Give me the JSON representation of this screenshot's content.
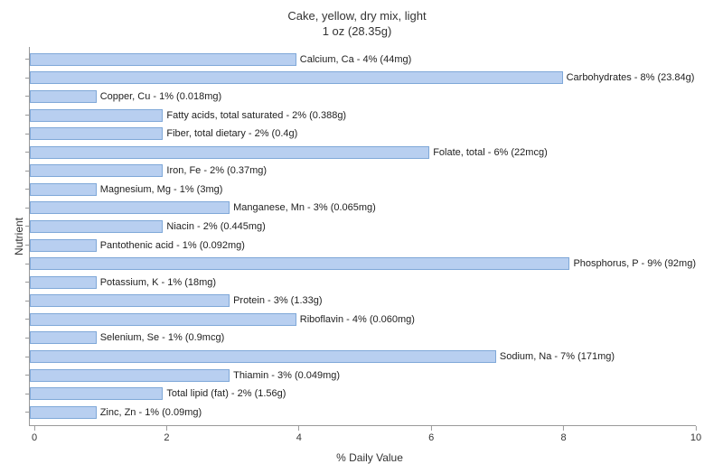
{
  "chart": {
    "type": "bar-horizontal",
    "title_line1": "Cake, yellow, dry mix, light",
    "title_line2": "1 oz (28.35g)",
    "title_fontsize": 13,
    "ylabel": "Nutrient",
    "xlabel": "% Daily Value",
    "label_fontsize": 12,
    "xlim": [
      0,
      10
    ],
    "xtick_step": 2,
    "xticks": [
      "0",
      "2",
      "4",
      "6",
      "8",
      "10"
    ],
    "bar_fill": "#b8cff0",
    "bar_border": "#7fa8d8",
    "background_color": "#ffffff",
    "axis_color": "#999999",
    "text_color": "#333333",
    "bar_label_fontsize": 11,
    "nutrients": [
      {
        "label": "Calcium, Ca - 4% (44mg)",
        "value": 4
      },
      {
        "label": "Carbohydrates - 8% (23.84g)",
        "value": 8
      },
      {
        "label": "Copper, Cu - 1% (0.018mg)",
        "value": 1
      },
      {
        "label": "Fatty acids, total saturated - 2% (0.388g)",
        "value": 2
      },
      {
        "label": "Fiber, total dietary - 2% (0.4g)",
        "value": 2
      },
      {
        "label": "Folate, total - 6% (22mcg)",
        "value": 6
      },
      {
        "label": "Iron, Fe - 2% (0.37mg)",
        "value": 2
      },
      {
        "label": "Magnesium, Mg - 1% (3mg)",
        "value": 1
      },
      {
        "label": "Manganese, Mn - 3% (0.065mg)",
        "value": 3
      },
      {
        "label": "Niacin - 2% (0.445mg)",
        "value": 2
      },
      {
        "label": "Pantothenic acid - 1% (0.092mg)",
        "value": 1
      },
      {
        "label": "Phosphorus, P - 9% (92mg)",
        "value": 9
      },
      {
        "label": "Potassium, K - 1% (18mg)",
        "value": 1
      },
      {
        "label": "Protein - 3% (1.33g)",
        "value": 3
      },
      {
        "label": "Riboflavin - 4% (0.060mg)",
        "value": 4
      },
      {
        "label": "Selenium, Se - 1% (0.9mcg)",
        "value": 1
      },
      {
        "label": "Sodium, Na - 7% (171mg)",
        "value": 7
      },
      {
        "label": "Thiamin - 3% (0.049mg)",
        "value": 3
      },
      {
        "label": "Total lipid (fat) - 2% (1.56g)",
        "value": 2
      },
      {
        "label": "Zinc, Zn - 1% (0.09mg)",
        "value": 1
      }
    ]
  }
}
